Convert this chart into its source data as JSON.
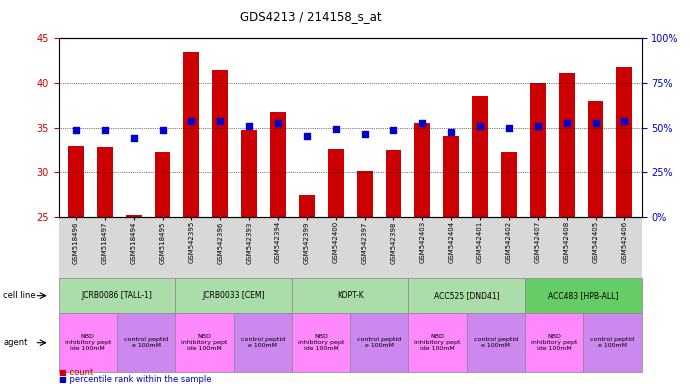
{
  "title": "GDS4213 / 214158_s_at",
  "gsm_labels": [
    "GSM518496",
    "GSM518497",
    "GSM518494",
    "GSM518495",
    "GSM542395",
    "GSM542396",
    "GSM542393",
    "GSM542394",
    "GSM542399",
    "GSM542400",
    "GSM542397",
    "GSM542398",
    "GSM542403",
    "GSM542404",
    "GSM542401",
    "GSM542402",
    "GSM542407",
    "GSM542408",
    "GSM542405",
    "GSM542406"
  ],
  "bar_values": [
    33.0,
    32.8,
    25.2,
    32.3,
    43.5,
    41.5,
    34.7,
    36.8,
    27.5,
    32.6,
    30.1,
    32.5,
    35.5,
    34.1,
    38.5,
    32.3,
    40.0,
    41.1,
    38.0,
    41.8
  ],
  "dot_values": [
    34.7,
    34.7,
    33.8,
    34.7,
    35.8,
    35.8,
    35.2,
    35.5,
    34.1,
    34.8,
    34.3,
    34.7,
    35.5,
    34.5,
    35.2,
    35.0,
    35.2,
    35.5,
    35.5,
    35.8
  ],
  "bar_color": "#cc0000",
  "dot_color": "#0000cc",
  "ylim_left": [
    25,
    45
  ],
  "ylim_right": [
    0,
    100
  ],
  "yticks_left": [
    25,
    30,
    35,
    40,
    45
  ],
  "yticks_right": [
    0,
    25,
    50,
    75,
    100
  ],
  "ytick_labels_right": [
    "0%",
    "25%",
    "50%",
    "75%",
    "100%"
  ],
  "cell_line_groups": [
    {
      "label": "JCRB0086 [TALL-1]",
      "start": 0,
      "end": 4,
      "color": "#aaddaa"
    },
    {
      "label": "JCRB0033 [CEM]",
      "start": 4,
      "end": 8,
      "color": "#aaddaa"
    },
    {
      "label": "KOPT-K",
      "start": 8,
      "end": 12,
      "color": "#aaddaa"
    },
    {
      "label": "ACC525 [DND41]",
      "start": 12,
      "end": 16,
      "color": "#aaddaa"
    },
    {
      "label": "ACC483 [HPB-ALL]",
      "start": 16,
      "end": 20,
      "color": "#66cc66"
    }
  ],
  "agent_groups": [
    {
      "label": "NBD\ninhibitory pept\nide 100mM",
      "start": 0,
      "end": 2,
      "color": "#ff88ff"
    },
    {
      "label": "control peptid\ne 100mM",
      "start": 2,
      "end": 4,
      "color": "#cc88ee"
    },
    {
      "label": "NBD\ninhibitory pept\nide 100mM",
      "start": 4,
      "end": 6,
      "color": "#ff88ff"
    },
    {
      "label": "control peptid\ne 100mM",
      "start": 6,
      "end": 8,
      "color": "#cc88ee"
    },
    {
      "label": "NBD\ninhibitory pept\nide 100mM",
      "start": 8,
      "end": 10,
      "color": "#ff88ff"
    },
    {
      "label": "control peptid\ne 100mM",
      "start": 10,
      "end": 12,
      "color": "#cc88ee"
    },
    {
      "label": "NBD\ninhibitory pept\nide 100mM",
      "start": 12,
      "end": 14,
      "color": "#ff88ff"
    },
    {
      "label": "control peptid\ne 100mM",
      "start": 14,
      "end": 16,
      "color": "#cc88ee"
    },
    {
      "label": "NBD\ninhibitory pept\nide 100mM",
      "start": 16,
      "end": 18,
      "color": "#ff88ff"
    },
    {
      "label": "control peptid\ne 100mM",
      "start": 18,
      "end": 20,
      "color": "#cc88ee"
    }
  ],
  "legend_count_color": "#cc0000",
  "legend_dot_color": "#0000cc",
  "bg_color": "#ffffff"
}
